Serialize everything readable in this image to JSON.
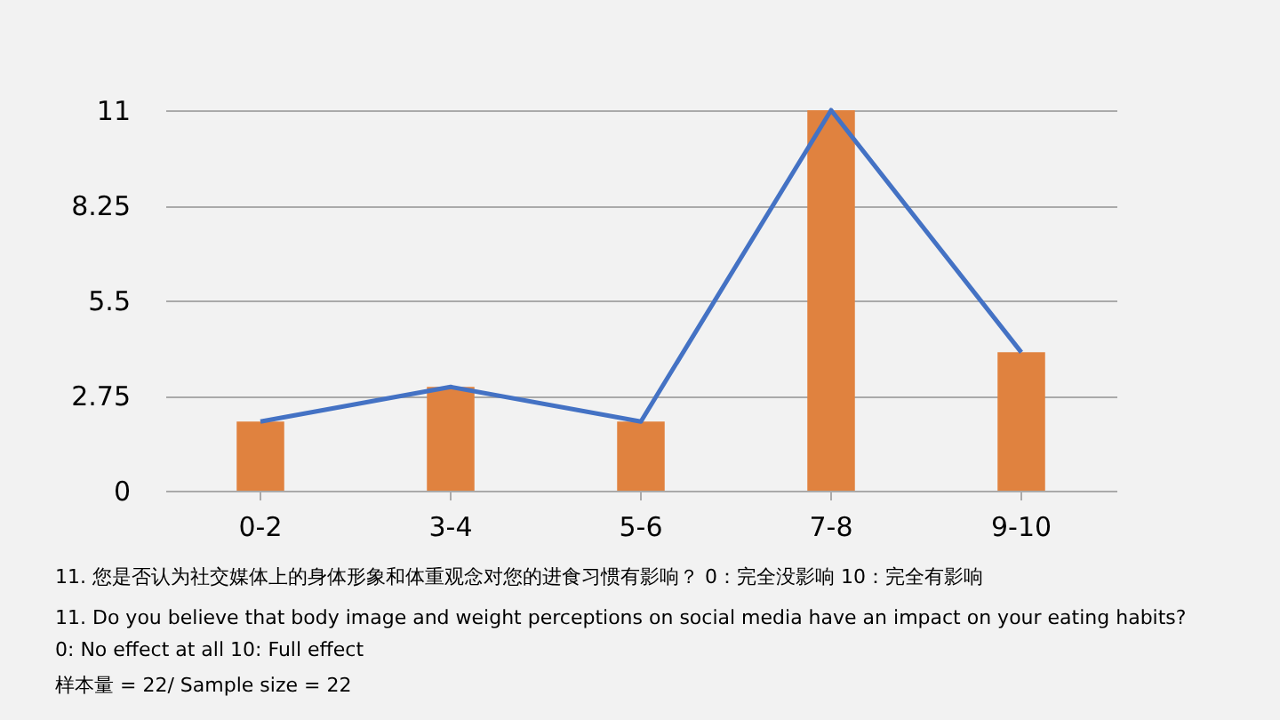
{
  "chart_data": {
    "type": "bar",
    "categories": [
      "0-2",
      "3-4",
      "5-6",
      "7-8",
      "9-10"
    ],
    "series": [
      {
        "color": "#e0823f",
        "values": [
          2,
          3,
          2,
          11,
          4
        ]
      },
      {
        "type": "line",
        "color": "#4472c4",
        "values": [
          2,
          3,
          2,
          11,
          4
        ]
      }
    ],
    "ylim": [
      0,
      11
    ],
    "yticks": [
      0,
      2.75,
      5.5,
      8.25,
      11
    ],
    "grid": "y",
    "marker": "none",
    "annotations": [
      "11. 您是否认为社交媒体上的身体形象和体重观念对您的进食习惯有影响？ 0：完全没影响 10：完全有影响",
      "11. Do you believe that body image and weight perceptions on social media have an impact on your eating habits?",
      "0: No effect at all 10: Full effect",
      "样本量 = 22/ Sample size = 22"
    ]
  }
}
